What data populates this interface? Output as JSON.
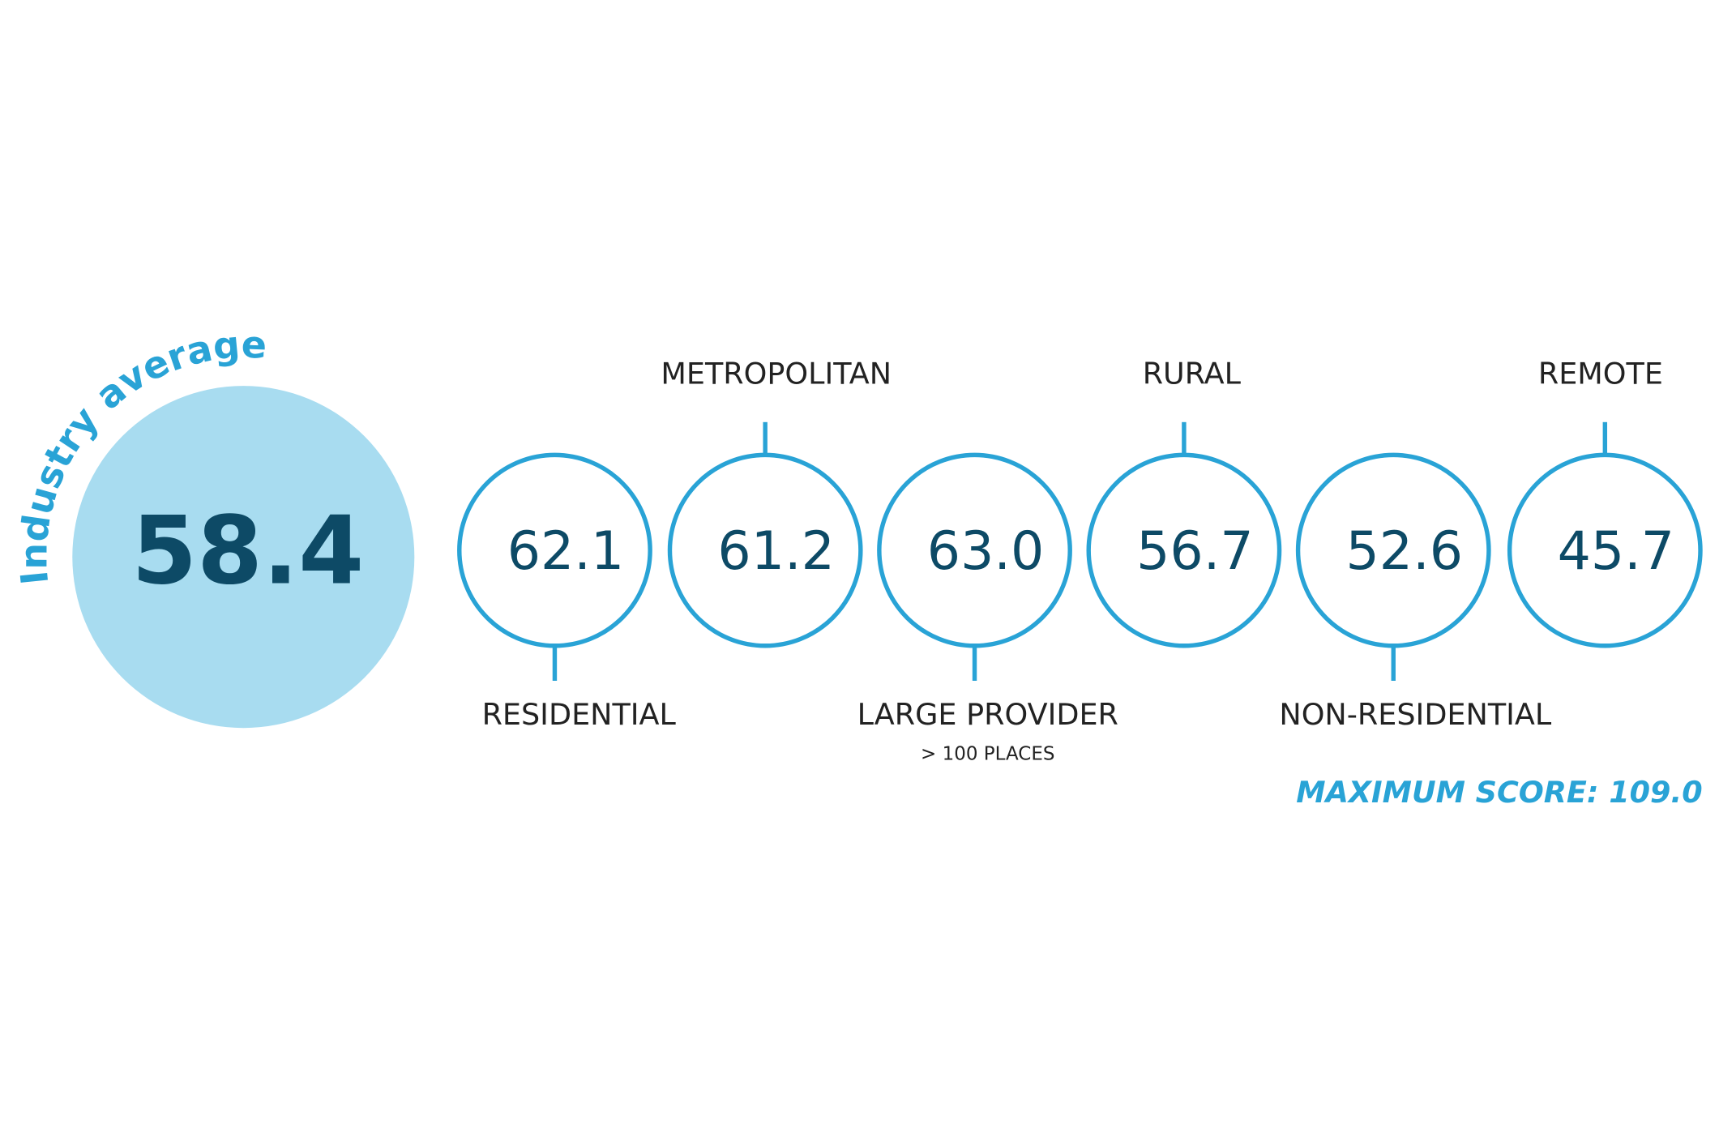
{
  "industry_average": {
    "label": "Industry average",
    "value": "58.4"
  },
  "circles": [
    {
      "value": "62.1",
      "label": "RESIDENTIAL",
      "side": "bottom"
    },
    {
      "value": "61.2",
      "label": "METROPOLITAN",
      "side": "top"
    },
    {
      "value": "63.0",
      "label": "LARGE PROVIDER",
      "sublabel": "> 100 PLACES",
      "side": "bottom"
    },
    {
      "value": "56.7",
      "label": "RURAL",
      "side": "top"
    },
    {
      "value": "52.6",
      "label": "NON-RESIDENTIAL",
      "side": "bottom"
    },
    {
      "value": "45.7",
      "label": "REMOTE",
      "side": "top"
    }
  ],
  "footnote": "MAXIMUM SCORE: 109.0"
}
